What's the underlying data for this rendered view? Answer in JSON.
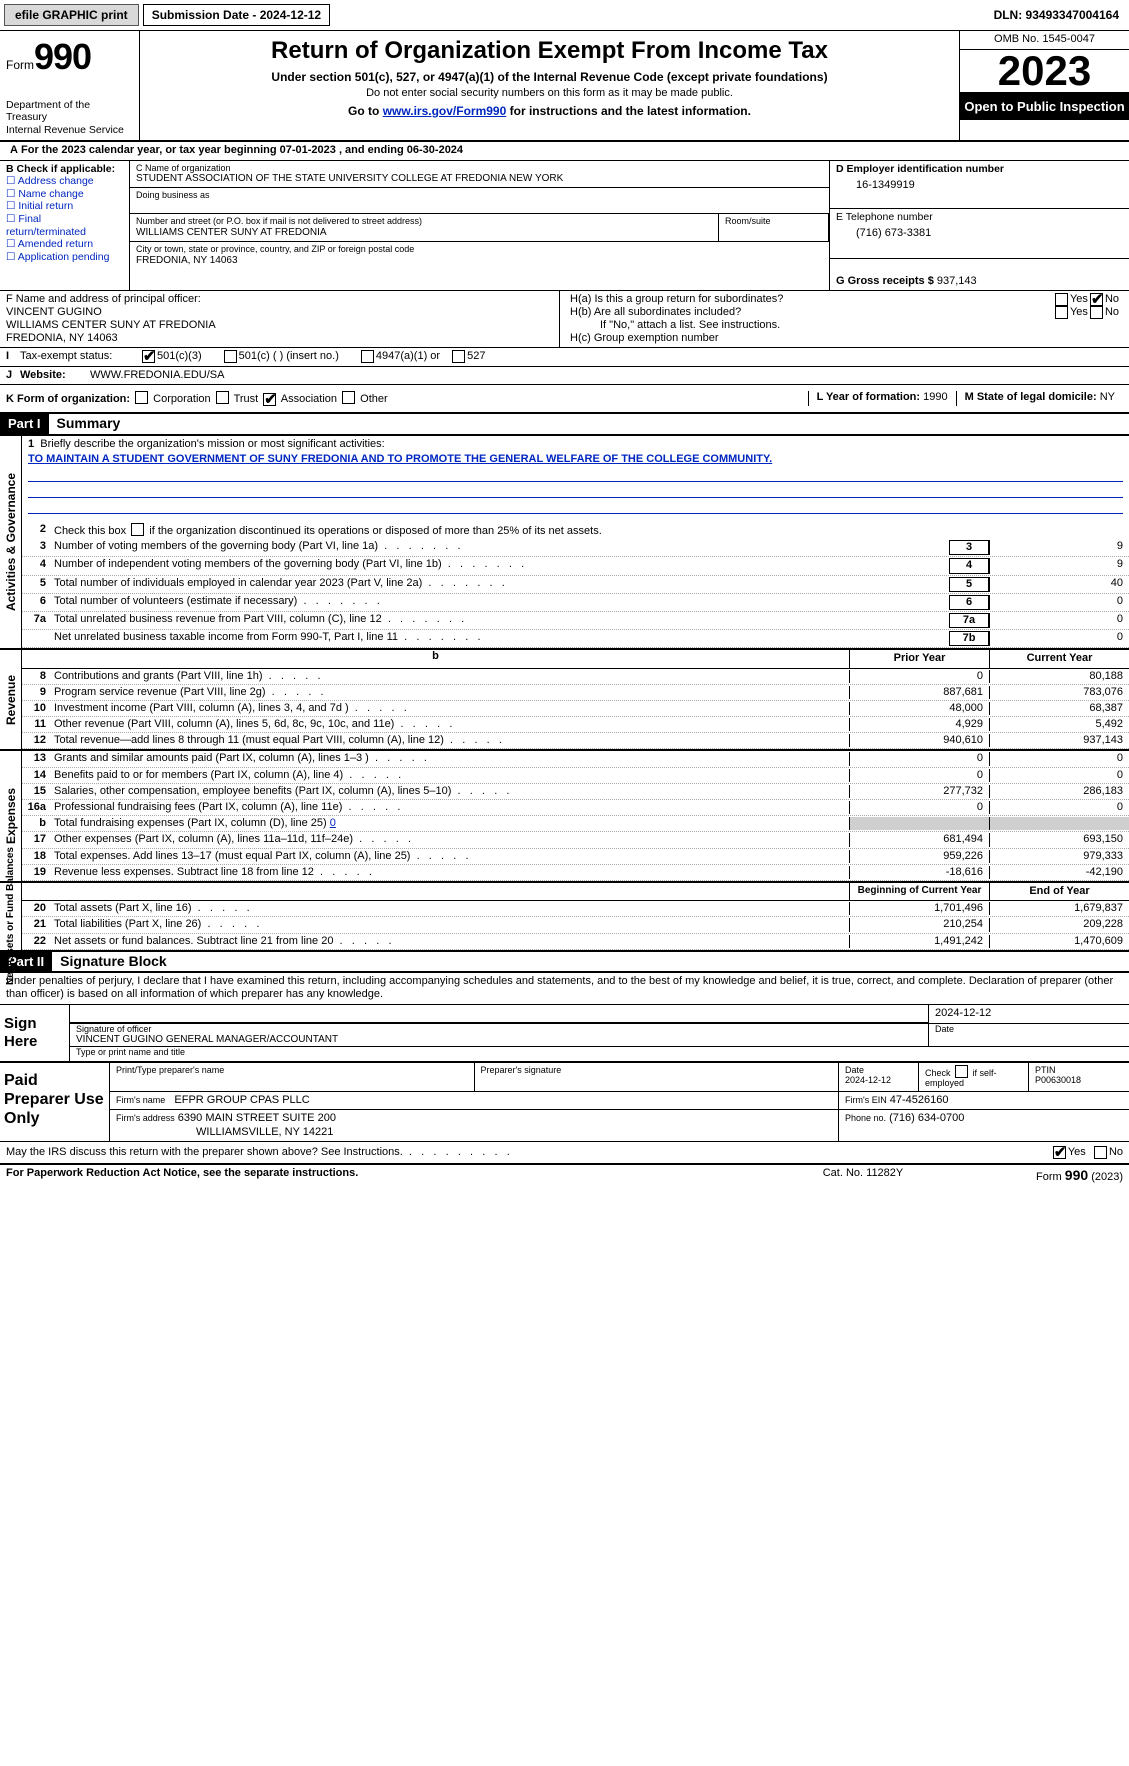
{
  "colors": {
    "link": "#0026c1",
    "black": "#000000",
    "white": "#ffffff",
    "grey_bg": "#d9d9d9",
    "shade": "#cfcfcf"
  },
  "topbar": {
    "efile_btn": "efile GRAPHIC print",
    "sub_date_label": "Submission Date - 2024-12-12",
    "dln": "DLN: 93493347004164"
  },
  "header": {
    "form_label": "Form",
    "form_num": "990",
    "dept": "Department of the Treasury",
    "irs": "Internal Revenue Service",
    "title": "Return of Organization Exempt From Income Tax",
    "sub1": "Under section 501(c), 527, or 4947(a)(1) of the Internal Revenue Code (except private foundations)",
    "sub2": "Do not enter social security numbers on this form as it may be made public.",
    "sub3_pre": "Go to ",
    "sub3_link": "www.irs.gov/Form990",
    "sub3_post": " for instructions and the latest information.",
    "omb": "OMB No. 1545-0047",
    "year": "2023",
    "open": "Open to Public Inspection"
  },
  "lineA": {
    "text": "For the 2023 calendar year, or tax year beginning 07-01-2023    , and ending 06-30-2024",
    "prefix": "A"
  },
  "sectB": {
    "header": "B Check if applicable:",
    "items": [
      "Address change",
      "Name change",
      "Initial return",
      "Final return/terminated",
      "Amended return",
      "Application pending"
    ]
  },
  "sectC": {
    "name_lbl": "C Name of organization",
    "name": "STUDENT ASSOCIATION OF THE STATE UNIVERSITY COLLEGE AT FREDONIA NEW YORK",
    "dba_lbl": "Doing business as",
    "street_lbl": "Number and street (or P.O. box if mail is not delivered to street address)",
    "street": "WILLIAMS CENTER SUNY AT FREDONIA",
    "room_lbl": "Room/suite",
    "city_lbl": "City or town, state or province, country, and ZIP or foreign postal code",
    "city": "FREDONIA, NY  14063"
  },
  "sectD": {
    "lbl": "D Employer identification number",
    "val": "16-1349919"
  },
  "sectE": {
    "lbl": "E Telephone number",
    "val": "(716) 673-3381"
  },
  "sectG": {
    "lbl": "G Gross receipts $",
    "val": "937,143"
  },
  "sectF": {
    "lbl": "F  Name and address of principal officer:",
    "name": "VINCENT GUGINO",
    "addr1": "WILLIAMS CENTER SUNY AT FREDONIA",
    "addr2": "FREDONIA, NY  14063"
  },
  "sectH": {
    "a": "H(a)  Is this a group return for subordinates?",
    "b": "H(b)  Are all subordinates included?",
    "b_note": "If \"No,\" attach a list. See instructions.",
    "c": "H(c)  Group exemption number",
    "yes": "Yes",
    "no": "No"
  },
  "sectI": {
    "lbl": "Tax-exempt status:",
    "o1": "501(c)(3)",
    "o2": "501(c) (   ) (insert no.)",
    "o3": "4947(a)(1) or",
    "o4": "527"
  },
  "sectJ": {
    "lbl": "Website:",
    "val": "WWW.FREDONIA.EDU/SA"
  },
  "sectK": {
    "lbl": "K Form of organization:",
    "opts": [
      "Corporation",
      "Trust",
      "Association",
      "Other"
    ],
    "checked_idx": 2
  },
  "sectL": {
    "lbl": "L Year of formation:",
    "val": "1990"
  },
  "sectM": {
    "lbl": "M State of legal domicile:",
    "val": "NY"
  },
  "parts": {
    "p1": "Part I",
    "p1t": "Summary",
    "p2": "Part II",
    "p2t": "Signature Block"
  },
  "summary": {
    "side1": "Activities & Governance",
    "side2": "Revenue",
    "side3": "Expenses",
    "side4": "Net Assets or Fund Balances",
    "line1_lbl": "Briefly describe the organization's mission or most significant activities:",
    "line1_val": "TO MAINTAIN A STUDENT GOVERNMENT OF SUNY FREDONIA AND TO PROMOTE THE GENERAL WELFARE OF THE COLLEGE COMMUNITY.",
    "line2": "Check this box        if the organization discontinued its operations or disposed of more than 25% of its net assets.",
    "rows_gov": [
      {
        "n": "3",
        "t": "Number of voting members of the governing body (Part VI, line 1a)",
        "box": "3",
        "v": "9"
      },
      {
        "n": "4",
        "t": "Number of independent voting members of the governing body (Part VI, line 1b)",
        "box": "4",
        "v": "9"
      },
      {
        "n": "5",
        "t": "Total number of individuals employed in calendar year 2023 (Part V, line 2a)",
        "box": "5",
        "v": "40"
      },
      {
        "n": "6",
        "t": "Total number of volunteers (estimate if necessary)",
        "box": "6",
        "v": "0"
      },
      {
        "n": "7a",
        "t": "Total unrelated business revenue from Part VIII, column (C), line 12",
        "box": "7a",
        "v": "0"
      },
      {
        "n": "",
        "t": "Net unrelated business taxable income from Form 990-T, Part I, line 11",
        "box": "7b",
        "v": "0"
      }
    ],
    "col_prior": "Prior Year",
    "col_curr": "Current Year",
    "rows_rev": [
      {
        "n": "8",
        "t": "Contributions and grants (Part VIII, line 1h)",
        "p": "0",
        "c": "80,188"
      },
      {
        "n": "9",
        "t": "Program service revenue (Part VIII, line 2g)",
        "p": "887,681",
        "c": "783,076"
      },
      {
        "n": "10",
        "t": "Investment income (Part VIII, column (A), lines 3, 4, and 7d )",
        "p": "48,000",
        "c": "68,387"
      },
      {
        "n": "11",
        "t": "Other revenue (Part VIII, column (A), lines 5, 6d, 8c, 9c, 10c, and 11e)",
        "p": "4,929",
        "c": "5,492"
      },
      {
        "n": "12",
        "t": "Total revenue—add lines 8 through 11 (must equal Part VIII, column (A), line 12)",
        "p": "940,610",
        "c": "937,143"
      }
    ],
    "rows_exp": [
      {
        "n": "13",
        "t": "Grants and similar amounts paid (Part IX, column (A), lines 1–3 )",
        "p": "0",
        "c": "0"
      },
      {
        "n": "14",
        "t": "Benefits paid to or for members (Part IX, column (A), line 4)",
        "p": "0",
        "c": "0"
      },
      {
        "n": "15",
        "t": "Salaries, other compensation, employee benefits (Part IX, column (A), lines 5–10)",
        "p": "277,732",
        "c": "286,183"
      },
      {
        "n": "16a",
        "t": "Professional fundraising fees (Part IX, column (A), line 11e)",
        "p": "0",
        "c": "0"
      }
    ],
    "line_b": "Total fundraising expenses (Part IX, column (D), line 25)",
    "line_b_val": "0",
    "rows_exp2": [
      {
        "n": "17",
        "t": "Other expenses (Part IX, column (A), lines 11a–11d, 11f–24e)",
        "p": "681,494",
        "c": "693,150"
      },
      {
        "n": "18",
        "t": "Total expenses. Add lines 13–17 (must equal Part IX, column (A), line 25)",
        "p": "959,226",
        "c": "979,333"
      },
      {
        "n": "19",
        "t": "Revenue less expenses. Subtract line 18 from line 12",
        "p": "-18,616",
        "c": "-42,190"
      }
    ],
    "col_begin": "Beginning of Current Year",
    "col_end": "End of Year",
    "rows_net": [
      {
        "n": "20",
        "t": "Total assets (Part X, line 16)",
        "p": "1,701,496",
        "c": "1,679,837"
      },
      {
        "n": "21",
        "t": "Total liabilities (Part X, line 26)",
        "p": "210,254",
        "c": "209,228"
      },
      {
        "n": "22",
        "t": "Net assets or fund balances. Subtract line 21 from line 20",
        "p": "1,491,242",
        "c": "1,470,609"
      }
    ]
  },
  "sig_penalty": "Under penalties of perjury, I declare that I have examined this return, including accompanying schedules and statements, and to the best of my knowledge and belief, it is true, correct, and complete. Declaration of preparer (other than officer) is based on all information of which preparer has any knowledge.",
  "sign": {
    "here": "Sign Here",
    "sig_lbl": "Signature of officer",
    "date_lbl": "Date",
    "date": "2024-12-12",
    "name": "VINCENT GUGINO  GENERAL MANAGER/ACCOUNTANT",
    "name_lbl": "Type or print name and title"
  },
  "prep": {
    "lbl": "Paid Preparer Use Only",
    "pname_lbl": "Print/Type preparer's name",
    "psig_lbl": "Preparer's signature",
    "pdate_lbl": "Date",
    "pdate": "2024-12-12",
    "pself": "Check        if self-employed",
    "ptin_lbl": "PTIN",
    "ptin": "P00630018",
    "firm_lbl": "Firm's name",
    "firm": "EFPR GROUP CPAS PLLC",
    "fein_lbl": "Firm's EIN",
    "fein": "47-4526160",
    "faddr_lbl": "Firm's address",
    "faddr1": "6390 MAIN STREET SUITE 200",
    "faddr2": "WILLIAMSVILLE, NY  14221",
    "phone_lbl": "Phone no.",
    "phone": "(716) 634-0700"
  },
  "discuss": "May the IRS discuss this return with the preparer shown above? See Instructions.",
  "footer": {
    "l": "For Paperwork Reduction Act Notice, see the separate instructions.",
    "m": "Cat. No. 11282Y",
    "r_pre": "Form ",
    "r_form": "990",
    "r_post": " (2023)"
  }
}
